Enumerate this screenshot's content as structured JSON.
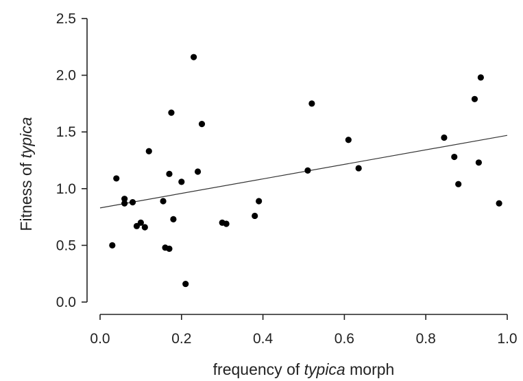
{
  "chart_data": {
    "type": "scatter",
    "title": "",
    "xlabel_parts": [
      {
        "text": "frequency of ",
        "italic": false
      },
      {
        "text": "typica",
        "italic": true
      },
      {
        "text": " morph",
        "italic": false
      }
    ],
    "ylabel_parts": [
      {
        "text": "Fitness of ",
        "italic": false
      },
      {
        "text": "typica",
        "italic": true
      }
    ],
    "xlim": [
      0.0,
      1.0
    ],
    "ylim": [
      0.0,
      2.5
    ],
    "x_ticks": [
      0.0,
      0.2,
      0.4,
      0.6,
      0.8,
      1.0
    ],
    "x_tick_labels": [
      "0.0",
      "0.2",
      "0.4",
      "0.6",
      "0.8",
      "1.0"
    ],
    "y_ticks": [
      0.0,
      0.5,
      1.0,
      1.5,
      2.0,
      2.5
    ],
    "y_tick_labels": [
      "0.0",
      "0.5",
      "1.0",
      "1.5",
      "2.0",
      "2.5"
    ],
    "grid": false,
    "points": [
      {
        "x": 0.03,
        "y": 0.5
      },
      {
        "x": 0.04,
        "y": 1.09
      },
      {
        "x": 0.06,
        "y": 0.91
      },
      {
        "x": 0.06,
        "y": 0.87
      },
      {
        "x": 0.08,
        "y": 0.88
      },
      {
        "x": 0.09,
        "y": 0.67
      },
      {
        "x": 0.1,
        "y": 0.7
      },
      {
        "x": 0.11,
        "y": 0.66
      },
      {
        "x": 0.12,
        "y": 1.33
      },
      {
        "x": 0.155,
        "y": 0.89
      },
      {
        "x": 0.16,
        "y": 0.48
      },
      {
        "x": 0.17,
        "y": 0.47
      },
      {
        "x": 0.17,
        "y": 1.13
      },
      {
        "x": 0.175,
        "y": 1.67
      },
      {
        "x": 0.18,
        "y": 0.73
      },
      {
        "x": 0.2,
        "y": 1.06
      },
      {
        "x": 0.21,
        "y": 0.16
      },
      {
        "x": 0.23,
        "y": 2.16
      },
      {
        "x": 0.24,
        "y": 1.15
      },
      {
        "x": 0.25,
        "y": 1.57
      },
      {
        "x": 0.3,
        "y": 0.7
      },
      {
        "x": 0.31,
        "y": 0.69
      },
      {
        "x": 0.38,
        "y": 0.76
      },
      {
        "x": 0.39,
        "y": 0.89
      },
      {
        "x": 0.51,
        "y": 1.16
      },
      {
        "x": 0.52,
        "y": 1.75
      },
      {
        "x": 0.61,
        "y": 1.43
      },
      {
        "x": 0.635,
        "y": 1.18
      },
      {
        "x": 0.845,
        "y": 1.45
      },
      {
        "x": 0.87,
        "y": 1.28
      },
      {
        "x": 0.88,
        "y": 1.04
      },
      {
        "x": 0.92,
        "y": 1.79
      },
      {
        "x": 0.93,
        "y": 1.23
      },
      {
        "x": 0.935,
        "y": 1.98
      },
      {
        "x": 0.98,
        "y": 0.87
      }
    ],
    "trend_line": {
      "x": [
        0.0,
        1.0
      ],
      "y": [
        0.83,
        1.47
      ]
    }
  }
}
